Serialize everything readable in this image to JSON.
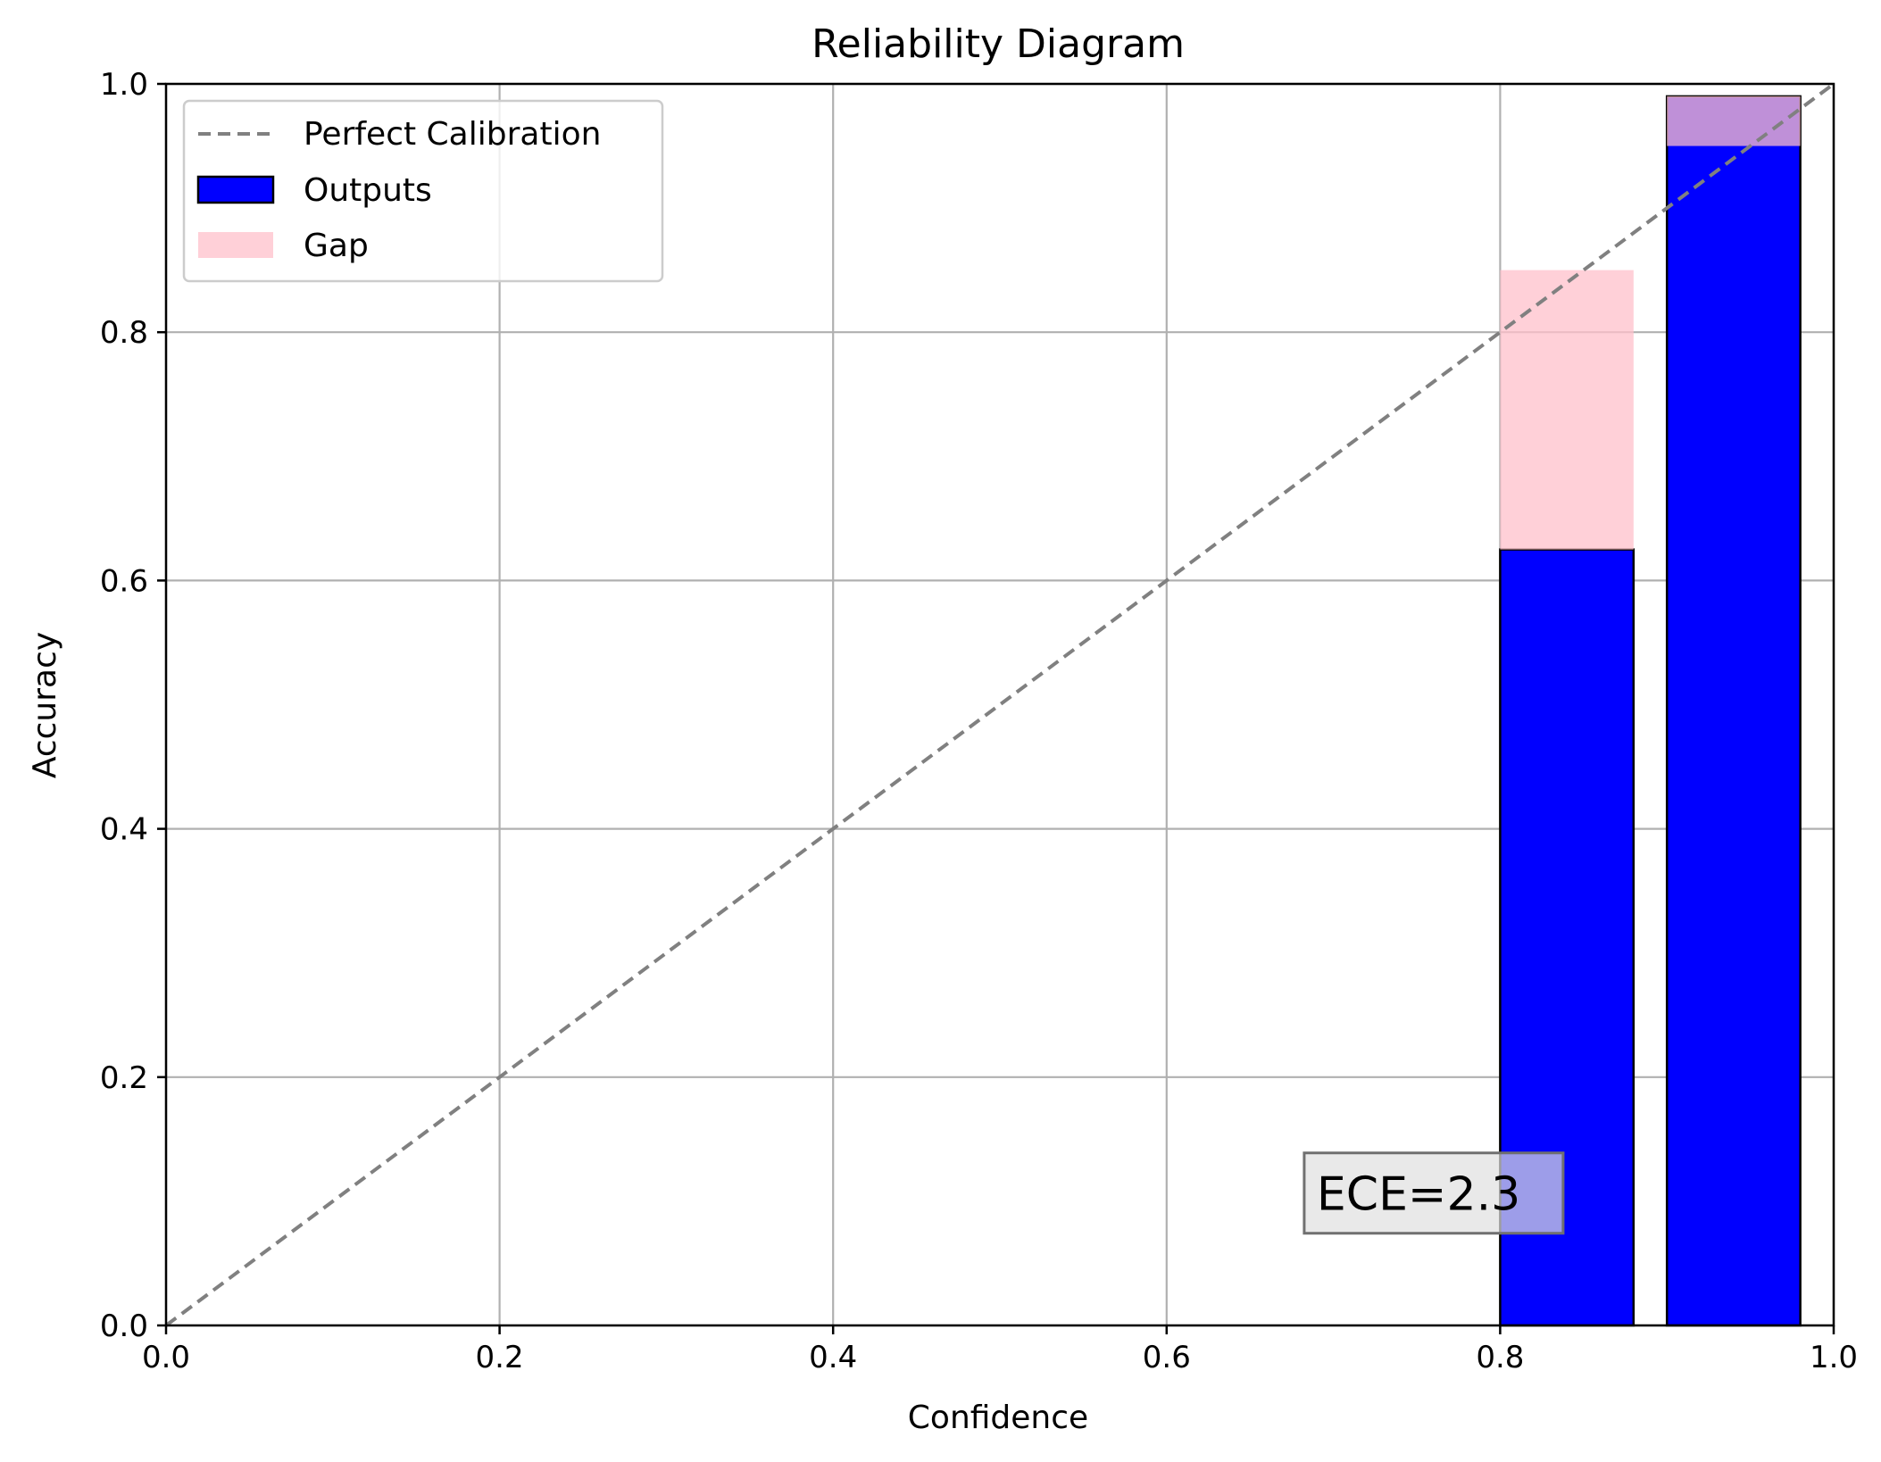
{
  "chart_data": {
    "type": "bar",
    "title": "Reliability Diagram",
    "xlabel": "Confidence",
    "ylabel": "Accuracy",
    "xlim": [
      0.0,
      1.0
    ],
    "ylim": [
      0.0,
      1.0
    ],
    "xticks": [
      "0.0",
      "0.2",
      "0.4",
      "0.6",
      "0.8",
      "1.0"
    ],
    "yticks": [
      "0.0",
      "0.2",
      "0.4",
      "0.6",
      "0.8",
      "1.0"
    ],
    "grid": true,
    "legend_position": "top-left",
    "legend": [
      "Perfect Calibration",
      "Outputs",
      "Gap"
    ],
    "bin_width": 0.1,
    "bins": [
      {
        "left": 0.0,
        "accuracy": 0.0,
        "confidence": 0.0
      },
      {
        "left": 0.1,
        "accuracy": 0.0,
        "confidence": 0.0
      },
      {
        "left": 0.2,
        "accuracy": 0.0,
        "confidence": 0.0
      },
      {
        "left": 0.3,
        "accuracy": 0.0,
        "confidence": 0.0
      },
      {
        "left": 0.4,
        "accuracy": 0.0,
        "confidence": 0.0
      },
      {
        "left": 0.5,
        "accuracy": 0.0,
        "confidence": 0.0
      },
      {
        "left": 0.6,
        "accuracy": 0.0,
        "confidence": 0.0
      },
      {
        "left": 0.7,
        "accuracy": 0.0,
        "confidence": 0.0
      },
      {
        "left": 0.8,
        "accuracy": 0.625,
        "confidence": 0.85
      },
      {
        "left": 0.9,
        "accuracy": 0.99,
        "confidence": 0.95
      }
    ],
    "annotation": "ECE=2.3",
    "annotation_position": [
      0.69,
      0.103
    ],
    "colors": {
      "outputs": "#0000ff",
      "gap": "#ffc0cb",
      "gap_alpha": 0.75,
      "perfect": "#808080",
      "grid": "#b0b0b0"
    }
  }
}
